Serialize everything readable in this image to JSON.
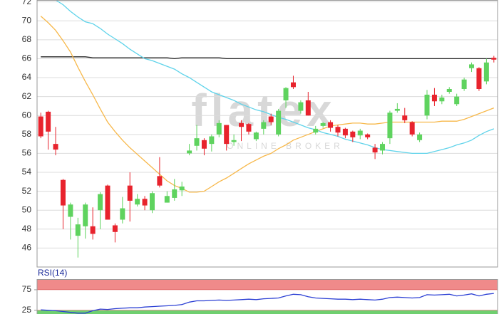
{
  "chart_data": [
    {
      "type": "candlestick",
      "watermark": "flatex",
      "watermark_sub": "ONLINE BROKER",
      "open": [
        59.9,
        60.4,
        57.0,
        53.2,
        49.3,
        47.3,
        48.3,
        48.3,
        50.0,
        52.6,
        48.4,
        49.0,
        52.6,
        50.6,
        51.2,
        50.0,
        53.6,
        50.8,
        51.3,
        52.1,
        56.0,
        56.8,
        57.4,
        57.0,
        58.0,
        59.0,
        57.2,
        59.2,
        59.1,
        57.5,
        58.6,
        59.9,
        58.0,
        61.6,
        63.5,
        60.5,
        61.6,
        58.2,
        58.9,
        59.3,
        58.8,
        58.6,
        58.3,
        57.9,
        58.0,
        56.6,
        56.3,
        57.6,
        60.5,
        60.0,
        59.3,
        57.4,
        60.0,
        62.2,
        61.5,
        62.5,
        61.2,
        62.8,
        65.0,
        65.0,
        63.6,
        66.1
      ],
      "high": [
        60.3,
        60.5,
        58.8,
        53.3,
        50.8,
        49.2,
        50.8,
        50.3,
        51.9,
        52.7,
        48.6,
        51.4,
        54.0,
        51.7,
        51.5,
        52.0,
        55.6,
        52.0,
        53.3,
        53.0,
        57.0,
        59.0,
        57.6,
        58.0,
        59.5,
        59.0,
        58.0,
        59.5,
        59.2,
        58.3,
        59.5,
        60.2,
        60.7,
        63.0,
        64.2,
        61.6,
        62.5,
        58.9,
        59.3,
        59.5,
        59.0,
        58.7,
        58.4,
        58.6,
        58.1,
        57.0,
        57.2,
        60.5,
        61.3,
        60.8,
        59.4,
        58.2,
        62.7,
        62.9,
        62.2,
        63.0,
        62.3,
        64.0,
        65.6,
        65.1,
        66.0,
        66.3
      ],
      "low": [
        57.6,
        56.4,
        55.8,
        48.0,
        46.9,
        45.0,
        47.0,
        46.9,
        48.0,
        49.0,
        46.6,
        48.6,
        48.8,
        50.4,
        50.0,
        49.7,
        52.4,
        50.8,
        51.0,
        51.5,
        55.8,
        56.3,
        55.8,
        56.2,
        57.7,
        56.3,
        56.8,
        57.3,
        58.0,
        57.3,
        58.0,
        59.0,
        57.8,
        60.8,
        62.8,
        60.2,
        60.0,
        58.0,
        58.7,
        58.3,
        57.8,
        57.6,
        57.2,
        57.5,
        57.5,
        55.4,
        55.9,
        57.0,
        60.3,
        59.2,
        57.8,
        57.2,
        59.6,
        61.0,
        61.2,
        62.3,
        61.0,
        62.6,
        64.6,
        62.6,
        63.3,
        65.6
      ],
      "close": [
        57.8,
        58.3,
        56.4,
        50.5,
        50.6,
        48.5,
        50.6,
        47.5,
        51.7,
        49.0,
        47.7,
        50.2,
        51.0,
        51.2,
        50.5,
        51.8,
        52.6,
        51.5,
        52.2,
        52.5,
        56.3,
        57.6,
        56.5,
        57.8,
        59.2,
        57.0,
        57.4,
        58.8,
        58.3,
        58.2,
        59.3,
        59.3,
        60.5,
        62.9,
        63.0,
        61.4,
        60.0,
        58.6,
        59.2,
        58.7,
        58.2,
        57.9,
        57.7,
        58.4,
        57.7,
        56.1,
        57.0,
        60.3,
        60.7,
        59.5,
        58.0,
        58.0,
        62.2,
        61.5,
        61.9,
        62.8,
        62.0,
        63.8,
        65.4,
        62.8,
        65.6,
        65.9
      ],
      "up_color": "#5fd35f",
      "down_color": "#e8232d",
      "series": [
        {
          "color": "#222222",
          "values": [
            66.2,
            66.2,
            66.2,
            66.2,
            66.2,
            66.2,
            66.2,
            66.1,
            66.1,
            66.1,
            66.1,
            66.1,
            66.1,
            66.1,
            66.1,
            66.1,
            66.1,
            66.1,
            66.0,
            66.1,
            66.1,
            66.1,
            66.1,
            66.1,
            66.1,
            66.0,
            66.0,
            66.0,
            66.0,
            66.0,
            66.0,
            66.0,
            66.0,
            66.0,
            66.0,
            66.0,
            66.0,
            66.0,
            66.0,
            66.0,
            66.0,
            66.0,
            66.0,
            66.0,
            66.0,
            66.0,
            66.0,
            66.0,
            66.0,
            66.0,
            66.0,
            66.0,
            66.0,
            66.0,
            66.0,
            66.0,
            66.0,
            66.0,
            66.0,
            66.0,
            66.0,
            66.0
          ]
        },
        {
          "color": "#f7b84a",
          "values": [
            70.5,
            69.8,
            69.0,
            67.9,
            66.7,
            65.1,
            63.6,
            62.2,
            60.7,
            59.3,
            58.3,
            57.4,
            56.6,
            55.9,
            55.2,
            54.5,
            53.8,
            53.1,
            52.6,
            52.3,
            51.9,
            51.9,
            52.0,
            52.5,
            53.0,
            53.4,
            53.9,
            54.4,
            54.9,
            55.3,
            55.7,
            56.0,
            56.5,
            56.9,
            57.4,
            57.7,
            58.0,
            58.3,
            58.6,
            58.9,
            59.0,
            59.1,
            59.2,
            59.2,
            59.1,
            59.1,
            59.2,
            59.3,
            59.3,
            59.3,
            59.3,
            59.3,
            59.3,
            59.3,
            59.4,
            59.4,
            59.4,
            59.6,
            59.9,
            60.2,
            60.5,
            60.8
          ]
        },
        {
          "color": "#5fd3ea",
          "values": [
            null,
            null,
            72.2,
            71.7,
            71.0,
            70.4,
            69.9,
            69.7,
            69.2,
            68.6,
            68.1,
            67.6,
            67.0,
            66.5,
            66.0,
            65.8,
            65.5,
            65.2,
            64.9,
            64.4,
            64.0,
            63.5,
            63.0,
            62.5,
            62.2,
            61.9,
            61.6,
            61.2,
            60.9,
            60.6,
            60.4,
            60.1,
            59.8,
            59.6,
            59.3,
            59.0,
            58.7,
            58.5,
            58.2,
            58.0,
            57.8,
            57.5,
            57.3,
            57.1,
            56.9,
            56.6,
            56.4,
            56.3,
            56.2,
            56.1,
            56.0,
            56.0,
            56.0,
            56.2,
            56.4,
            56.6,
            56.9,
            57.1,
            57.4,
            57.9,
            58.3,
            58.6
          ]
        }
      ],
      "ylim": [
        44,
        72.2
      ],
      "yticks": [
        46,
        48,
        50,
        52,
        54,
        56,
        58,
        60,
        62,
        64,
        66,
        68,
        70,
        72
      ],
      "grid": true
    },
    {
      "type": "line",
      "title": "RSI(14)",
      "series": [
        {
          "color": "#2b3fd4",
          "values": [
            26,
            25,
            24,
            22,
            20,
            18,
            18,
            24,
            28,
            27,
            29,
            30,
            31,
            31,
            33,
            34,
            35,
            36,
            37,
            39,
            45,
            48,
            48,
            49,
            50,
            49,
            50,
            51,
            52,
            51,
            53,
            54,
            55,
            60,
            64,
            63,
            58,
            55,
            54,
            53,
            52,
            52,
            51,
            52,
            51,
            50,
            52,
            56,
            57,
            56,
            55,
            56,
            63,
            62,
            63,
            64,
            60,
            62,
            65,
            60,
            64,
            66
          ]
        }
      ],
      "bands": [
        {
          "from": 75,
          "to": 100,
          "color": "#f08a8a"
        },
        {
          "from": 0,
          "to": 25,
          "color": "#6fcf6f"
        }
      ],
      "ylim": [
        16,
        100
      ],
      "yticks": [
        25,
        75
      ]
    }
  ]
}
